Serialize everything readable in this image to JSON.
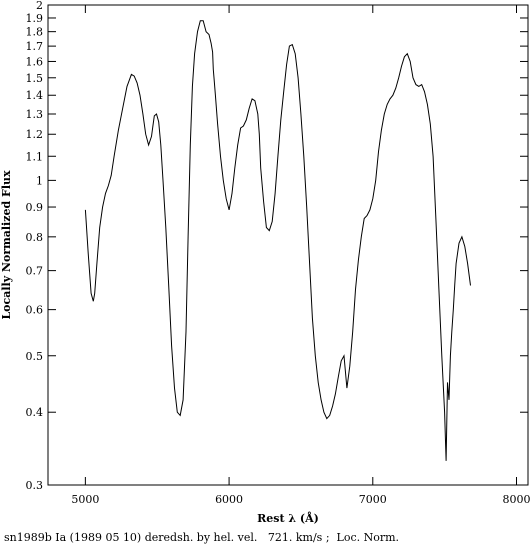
{
  "chart_data": {
    "type": "line",
    "title": "",
    "xlabel": "Rest λ (Å)",
    "ylabel": "Locally Normalized Flux",
    "caption": "sn1989b Ia (1989 05 10) deredsh. by hel. vel.   721. km/s ;  Loc. Norm.",
    "xlim": [
      4740,
      8080
    ],
    "ylim": [
      0.3,
      2.0
    ],
    "yscale": "log",
    "grid": false,
    "x_ticks": [
      5000,
      6000,
      7000,
      8000
    ],
    "x_tick_labels": [
      "5000",
      "6000",
      "7000",
      "8000"
    ],
    "y_ticks": [
      0.3,
      0.4,
      0.5,
      0.6,
      0.7,
      0.8,
      0.9,
      1.0,
      1.1,
      1.2,
      1.3,
      1.4,
      1.5,
      1.6,
      1.7,
      1.8,
      1.9,
      2.0
    ],
    "y_tick_labels": [
      "0.3",
      "0.4",
      "0.5",
      "0.6",
      "0.7",
      "0.8",
      "0.9",
      "1",
      "1.1",
      "1.2",
      "1.3",
      "1.4",
      "1.5",
      "1.6",
      "1.7",
      "1.8",
      "1.9",
      "2"
    ],
    "series": [
      {
        "color": "#000000",
        "x": [
          5000,
          5020,
          5040,
          5055,
          5065,
          5080,
          5100,
          5120,
          5140,
          5160,
          5180,
          5200,
          5230,
          5260,
          5290,
          5320,
          5340,
          5360,
          5380,
          5400,
          5420,
          5440,
          5460,
          5470,
          5480,
          5495,
          5510,
          5525,
          5540,
          5560,
          5580,
          5600,
          5620,
          5640,
          5660,
          5680,
          5700,
          5715,
          5730,
          5745,
          5760,
          5780,
          5800,
          5820,
          5840,
          5860,
          5875,
          5885,
          5890,
          5895,
          5905,
          5920,
          5940,
          5960,
          5980,
          6000,
          6020,
          6040,
          6060,
          6080,
          6100,
          6120,
          6140,
          6160,
          6180,
          6200,
          6210,
          6220,
          6240,
          6260,
          6280,
          6300,
          6320,
          6340,
          6360,
          6380,
          6400,
          6420,
          6440,
          6460,
          6480,
          6500,
          6520,
          6540,
          6560,
          6580,
          6600,
          6620,
          6640,
          6660,
          6680,
          6700,
          6720,
          6740,
          6760,
          6780,
          6800,
          6820,
          6840,
          6860,
          6880,
          6900,
          6920,
          6940,
          6960,
          6980,
          7000,
          7020,
          7040,
          7060,
          7080,
          7100,
          7120,
          7140,
          7160,
          7180,
          7200,
          7220,
          7240,
          7260,
          7280,
          7300,
          7320,
          7340,
          7360,
          7380,
          7400,
          7420,
          7440,
          7460,
          7480,
          7500,
          7510,
          7520,
          7530,
          7540,
          7550,
          7560,
          7570,
          7580,
          7600,
          7620,
          7640,
          7660,
          7680
        ],
        "y": [
          0.89,
          0.75,
          0.64,
          0.62,
          0.64,
          0.72,
          0.83,
          0.9,
          0.95,
          0.98,
          1.02,
          1.1,
          1.22,
          1.33,
          1.45,
          1.52,
          1.51,
          1.47,
          1.4,
          1.3,
          1.2,
          1.15,
          1.19,
          1.24,
          1.29,
          1.3,
          1.26,
          1.15,
          1.0,
          0.83,
          0.66,
          0.52,
          0.44,
          0.4,
          0.395,
          0.42,
          0.55,
          0.8,
          1.15,
          1.45,
          1.65,
          1.8,
          1.88,
          1.88,
          1.8,
          1.78,
          1.72,
          1.66,
          1.55,
          1.5,
          1.4,
          1.25,
          1.1,
          1.0,
          0.93,
          0.89,
          0.95,
          1.05,
          1.15,
          1.23,
          1.24,
          1.27,
          1.33,
          1.38,
          1.37,
          1.3,
          1.2,
          1.05,
          0.92,
          0.83,
          0.82,
          0.85,
          0.95,
          1.1,
          1.27,
          1.42,
          1.58,
          1.7,
          1.71,
          1.65,
          1.5,
          1.3,
          1.1,
          0.9,
          0.72,
          0.58,
          0.5,
          0.45,
          0.42,
          0.4,
          0.39,
          0.395,
          0.41,
          0.43,
          0.46,
          0.49,
          0.5,
          0.44,
          0.48,
          0.55,
          0.65,
          0.73,
          0.8,
          0.86,
          0.87,
          0.89,
          0.93,
          1.0,
          1.12,
          1.22,
          1.3,
          1.35,
          1.38,
          1.4,
          1.44,
          1.5,
          1.57,
          1.63,
          1.65,
          1.6,
          1.5,
          1.46,
          1.45,
          1.46,
          1.42,
          1.35,
          1.25,
          1.1,
          0.85,
          0.65,
          0.5,
          0.4,
          0.33,
          0.45,
          0.42,
          0.5,
          0.55,
          0.6,
          0.66,
          0.72,
          0.78,
          0.8,
          0.77,
          0.72,
          0.66
        ]
      }
    ]
  }
}
